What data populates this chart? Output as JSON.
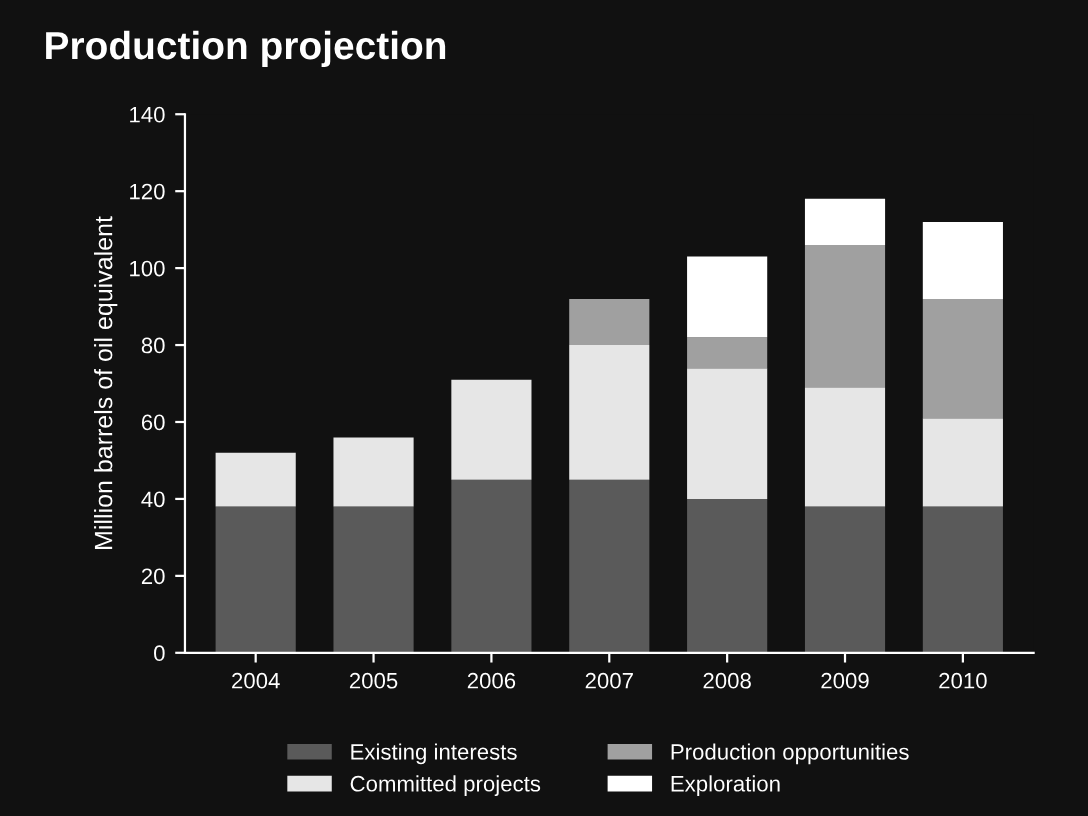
{
  "chart_data": {
    "type": "bar",
    "title": "Production projection",
    "ylabel": "Million barrels of oil equivalent",
    "categories": [
      "2004",
      "2005",
      "2006",
      "2007",
      "2008",
      "2009",
      "2010"
    ],
    "stacked": true,
    "series": [
      {
        "name": "Existing interests",
        "color": "#5a5a5a",
        "values": [
          38,
          38,
          45,
          45,
          40,
          38,
          38
        ]
      },
      {
        "name": "Committed projects",
        "color": "#e6e6e6",
        "values": [
          14,
          18,
          26,
          35,
          34,
          31,
          23
        ]
      },
      {
        "name": "Production opportunities",
        "color": "#a0a0a0",
        "values": [
          0,
          0,
          0,
          12,
          8,
          37,
          31
        ]
      },
      {
        "name": "Exploration",
        "color": "#ffffff",
        "values": [
          0,
          0,
          0,
          0,
          21,
          12,
          20
        ]
      }
    ],
    "ylim": [
      0,
      140
    ],
    "yticks": [
      0,
      20,
      40,
      60,
      80,
      100,
      120,
      140
    ],
    "grid": false,
    "legend": "bottom"
  }
}
